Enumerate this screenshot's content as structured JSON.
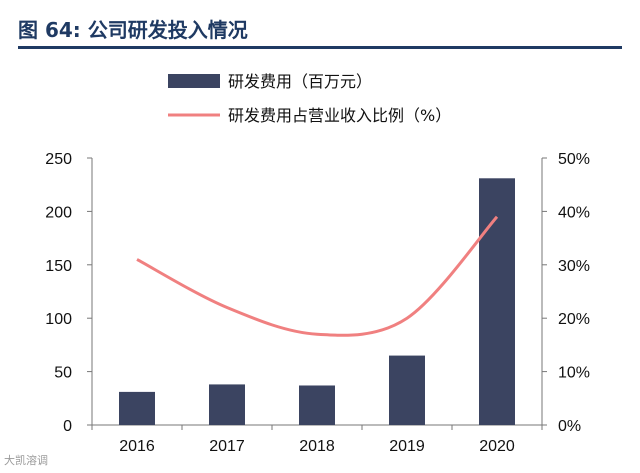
{
  "title": "图 64:  公司研发投入情况",
  "watermark": "大凯溶调",
  "colors": {
    "bar": "#3b4461",
    "line": "#f08080",
    "title": "#1f3a63"
  },
  "chart_data": {
    "type": "bar+line",
    "categories": [
      "2016",
      "2017",
      "2018",
      "2019",
      "2020"
    ],
    "series": [
      {
        "name": "研发费用（百万元）",
        "type": "bar",
        "axis": "left",
        "values": [
          31,
          38,
          37,
          65,
          231
        ]
      },
      {
        "name": "研发费用占营业收入比例（%）",
        "type": "line",
        "axis": "right",
        "values": [
          31,
          22,
          17,
          20,
          39
        ]
      }
    ],
    "left_axis": {
      "ylim": [
        0,
        250
      ],
      "ticks": [
        "0",
        "50",
        "100",
        "150",
        "200",
        "250"
      ]
    },
    "right_axis": {
      "ylim": [
        0,
        50
      ],
      "ticks": [
        "0%",
        "10%",
        "20%",
        "30%",
        "40%",
        "50%"
      ]
    },
    "legend_position": "top",
    "grid": false
  }
}
